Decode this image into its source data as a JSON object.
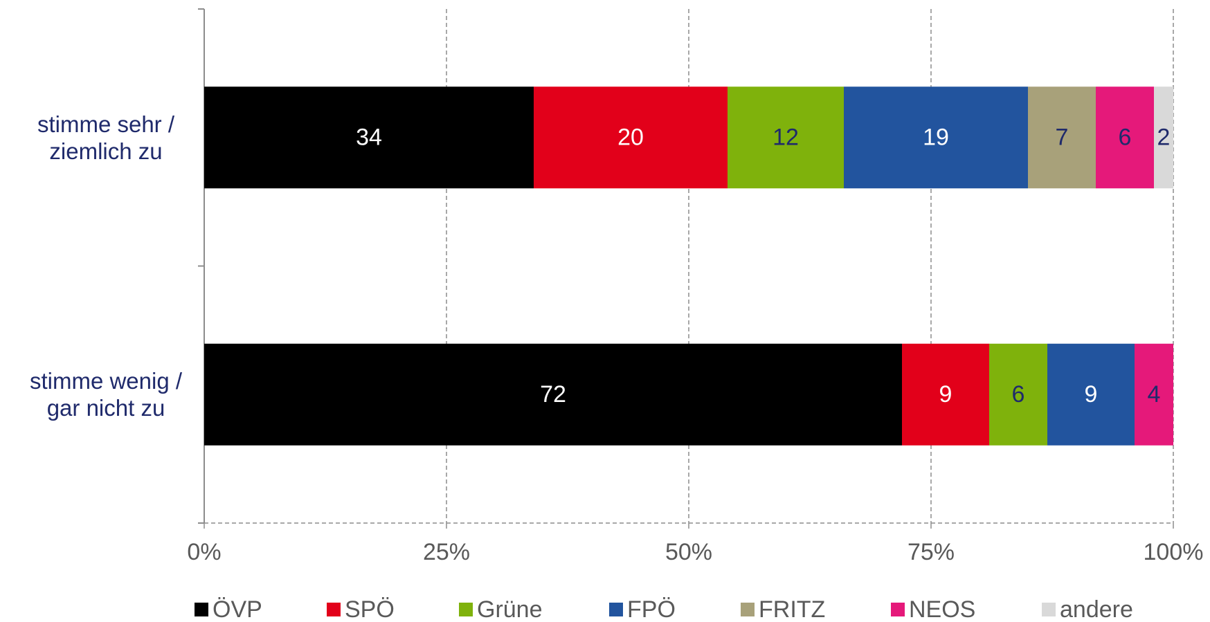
{
  "chart_data": {
    "type": "stacked_bar_horizontal",
    "categories": [
      "stimme sehr / ziemlich zu",
      "stimme wenig / gar nicht zu"
    ],
    "series": [
      {
        "name": "ÖVP",
        "color": "#000000",
        "label_color": "#ffffff",
        "values": [
          34,
          72
        ]
      },
      {
        "name": "SPÖ",
        "color": "#e2001a",
        "label_color": "#ffffff",
        "values": [
          20,
          9
        ]
      },
      {
        "name": "Grüne",
        "color": "#7fb20c",
        "label_color": "#1f2a6b",
        "values": [
          12,
          6
        ]
      },
      {
        "name": "FPÖ",
        "color": "#22549e",
        "label_color": "#ffffff",
        "values": [
          19,
          9
        ]
      },
      {
        "name": "FRITZ",
        "color": "#a8a17a",
        "label_color": "#1f2a6b",
        "values": [
          7,
          null
        ]
      },
      {
        "name": "NEOS",
        "color": "#e5197a",
        "label_color": "#1f2a6b",
        "values": [
          6,
          4
        ]
      },
      {
        "name": "andere",
        "color": "#d9d9d9",
        "label_color": "#1f2a6b",
        "values": [
          2,
          null
        ]
      }
    ],
    "xlim": [
      0,
      100
    ],
    "xticks": [
      {
        "value": 0,
        "label": "0%"
      },
      {
        "value": 25,
        "label": "25%"
      },
      {
        "value": 50,
        "label": "50%"
      },
      {
        "value": 75,
        "label": "75%"
      },
      {
        "value": 100,
        "label": "100%"
      }
    ],
    "grid": true,
    "legend": "bottom"
  }
}
